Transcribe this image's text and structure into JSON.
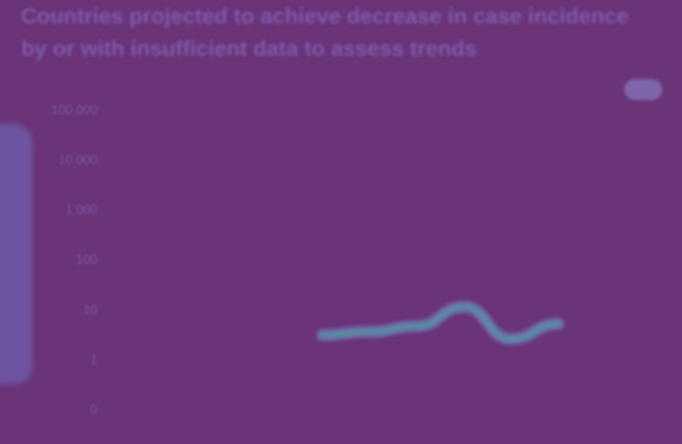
{
  "title": {
    "prefix": "",
    "part1": "Countries projected to achieve",
    "highlight": "",
    "part2": "decrease in case incidence by",
    "highlight2": "",
    "part3": "or with insufficient data to assess trends"
  },
  "colors": {
    "background": "#6b3378",
    "line_outer": "#6f5fa3",
    "line_inner": "#4f8aa2",
    "line_core": "#6a86a6"
  },
  "chart_data": {
    "type": "line",
    "title": "Countries projected to achieve decrease in case incidence by or with insufficient data to assess trends",
    "xlabel": "",
    "ylabel": "",
    "y_scale": "log",
    "y_ticks": [
      "0",
      "1",
      "10",
      "100",
      "1 000",
      "10 000",
      "100 000"
    ],
    "x_ticks": [
      "",
      "",
      "",
      "",
      "",
      "",
      "",
      "",
      "",
      "",
      "",
      ""
    ],
    "legend": {
      "position": "top-right",
      "entries": [
        ""
      ]
    },
    "grid": false,
    "series": [
      {
        "name": "",
        "x_index": [
          4,
          5,
          6,
          7,
          8,
          9
        ],
        "values": [
          3,
          3.5,
          4.5,
          11,
          2.5,
          5
        ]
      }
    ]
  }
}
